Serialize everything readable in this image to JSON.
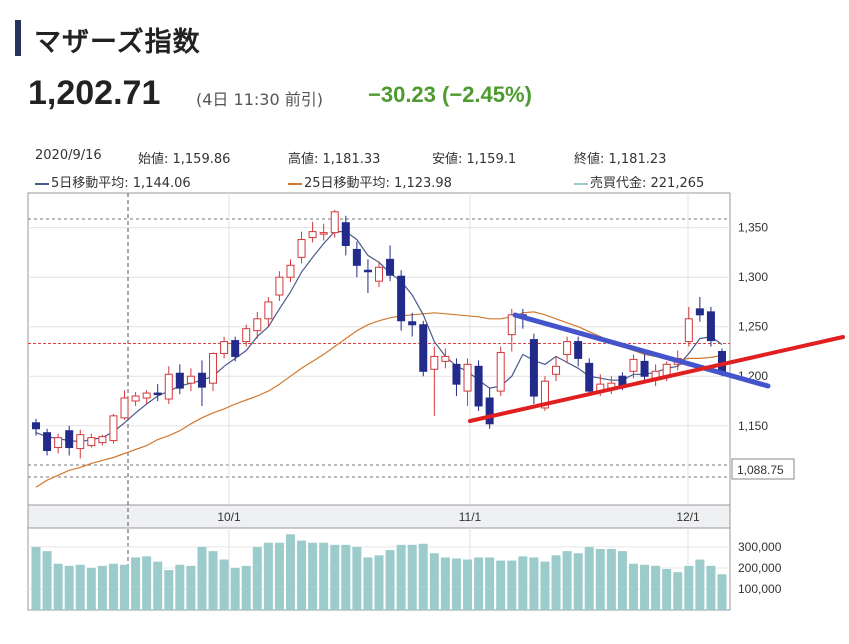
{
  "header": {
    "title": "マザーズ指数",
    "price": "1,202.71",
    "time": "(4日 11:30 前引)",
    "change": "−30.23 (−2.45%)"
  },
  "colors": {
    "up": "#d2383b",
    "down": "#222a8a",
    "ma5": "#4a5a8a",
    "ma25": "#d07a30",
    "volume": "#9ccbcc",
    "accent": "#4d9a2e"
  },
  "info": {
    "date": "2020/9/16",
    "open": "始値: 1,159.86",
    "high": "高値: 1,181.33",
    "low": "安値: 1,159.1",
    "close": "終値: 1,181.23",
    "ma5": "5日移動平均: 1,144.06",
    "ma25": "25日移動平均: 1,123.98",
    "volume": "売買代金: 221,265"
  },
  "chart_data": {
    "type": "candlestick",
    "x_ticks": [
      "10/1",
      "11/1",
      "12/1"
    ],
    "y_ticks": [
      1150,
      1200,
      1250,
      1300,
      1350
    ],
    "y_tick_labels": [
      "1,150",
      "1,200",
      "1,250",
      "1,300",
      "1,350"
    ],
    "ylim": [
      1070,
      1385
    ],
    "price_marker": "1,088.75",
    "reference_line": 1233,
    "candles": [
      [
        1153,
        1147,
        1157,
        1140
      ],
      [
        1143,
        1125,
        1147,
        1120
      ],
      [
        1128,
        1138,
        1142,
        1122
      ],
      [
        1145,
        1128,
        1150,
        1120
      ],
      [
        1127,
        1141,
        1146,
        1117
      ],
      [
        1130,
        1138,
        1142,
        1128
      ],
      [
        1133,
        1139,
        1141,
        1130
      ],
      [
        1135,
        1160,
        1162,
        1132
      ],
      [
        1158,
        1178,
        1186,
        1156
      ],
      [
        1175,
        1180,
        1184,
        1170
      ],
      [
        1178,
        1183,
        1186,
        1172
      ],
      [
        1183,
        1182,
        1192,
        1175
      ],
      [
        1177,
        1202,
        1210,
        1172
      ],
      [
        1203,
        1188,
        1212,
        1182
      ],
      [
        1193,
        1200,
        1208,
        1185
      ],
      [
        1203,
        1189,
        1216,
        1170
      ],
      [
        1193,
        1223,
        1224,
        1185
      ],
      [
        1223,
        1235,
        1240,
        1218
      ],
      [
        1236,
        1220,
        1240,
        1215
      ],
      [
        1235,
        1248,
        1252,
        1230
      ],
      [
        1246,
        1258,
        1265,
        1238
      ],
      [
        1258,
        1275,
        1280,
        1250
      ],
      [
        1282,
        1300,
        1306,
        1276
      ],
      [
        1300,
        1312,
        1318,
        1295
      ],
      [
        1320,
        1338,
        1346,
        1314
      ],
      [
        1340,
        1346,
        1356,
        1335
      ],
      [
        1344,
        1345,
        1354,
        1337
      ],
      [
        1345,
        1366,
        1368,
        1340
      ],
      [
        1355,
        1332,
        1362,
        1322
      ],
      [
        1328,
        1312,
        1336,
        1300
      ],
      [
        1307,
        1306,
        1318,
        1284
      ],
      [
        1296,
        1310,
        1316,
        1290
      ],
      [
        1318,
        1302,
        1332,
        1296
      ],
      [
        1301,
        1256,
        1307,
        1246
      ],
      [
        1255,
        1252,
        1264,
        1240
      ],
      [
        1252,
        1205,
        1256,
        1200
      ],
      [
        1207,
        1220,
        1230,
        1160
      ],
      [
        1215,
        1220,
        1228,
        1208
      ],
      [
        1212,
        1192,
        1218,
        1180
      ],
      [
        1185,
        1212,
        1218,
        1170
      ],
      [
        1210,
        1170,
        1216,
        1165
      ],
      [
        1178,
        1152,
        1188,
        1147
      ],
      [
        1185,
        1224,
        1230,
        1180
      ],
      [
        1242,
        1262,
        1268,
        1225
      ],
      [
        1262,
        1259,
        1268,
        1248
      ],
      [
        1237,
        1180,
        1243,
        1172
      ],
      [
        1168,
        1195,
        1200,
        1165
      ],
      [
        1202,
        1210,
        1220,
        1195
      ],
      [
        1222,
        1235,
        1240,
        1213
      ],
      [
        1235,
        1218,
        1240,
        1210
      ],
      [
        1213,
        1185,
        1218,
        1180
      ],
      [
        1185,
        1192,
        1202,
        1180
      ],
      [
        1188,
        1193,
        1200,
        1182
      ],
      [
        1200,
        1191,
        1204,
        1186
      ],
      [
        1205,
        1217,
        1222,
        1198
      ],
      [
        1215,
        1200,
        1222,
        1195
      ],
      [
        1198,
        1205,
        1212,
        1190
      ],
      [
        1200,
        1212,
        1215,
        1195
      ],
      [
        1212,
        1218,
        1226,
        1206
      ],
      [
        1235,
        1258,
        1270,
        1230
      ],
      [
        1268,
        1262,
        1280,
        1255
      ],
      [
        1265,
        1236,
        1270,
        1230
      ],
      [
        1225,
        1203,
        1228,
        1200
      ]
    ],
    "ma5": [
      1143,
      1139,
      1137,
      1135,
      1134,
      1136,
      1138,
      1144,
      1153,
      1163,
      1172,
      1180,
      1185,
      1190,
      1193,
      1196,
      1200,
      1210,
      1218,
      1226,
      1240,
      1250,
      1268,
      1285,
      1305,
      1320,
      1334,
      1346,
      1346,
      1338,
      1322,
      1315,
      1304,
      1296,
      1282,
      1262,
      1235,
      1220,
      1210,
      1205,
      1196,
      1188,
      1190,
      1200,
      1222,
      1216,
      1212,
      1220,
      1214,
      1208,
      1200,
      1198,
      1196,
      1196,
      1202,
      1202,
      1204,
      1208,
      1210,
      1223,
      1238,
      1240,
      1232
    ],
    "ma25": [
      1088,
      1095,
      1100,
      1105,
      1108,
      1112,
      1115,
      1118,
      1122,
      1126,
      1130,
      1136,
      1140,
      1145,
      1152,
      1158,
      1163,
      1167,
      1172,
      1176,
      1180,
      1185,
      1192,
      1200,
      1208,
      1215,
      1222,
      1230,
      1238,
      1246,
      1252,
      1256,
      1259,
      1261,
      1262,
      1263,
      1264,
      1263,
      1262,
      1261,
      1260,
      1258,
      1258,
      1260,
      1264,
      1265,
      1262,
      1258,
      1254,
      1250,
      1245,
      1240,
      1235,
      1230,
      1226,
      1222,
      1220,
      1218,
      1216,
      1218,
      1218,
      1219,
      1221
    ],
    "volume_ticks": [
      100000,
      200000,
      300000
    ],
    "volume_tick_labels": [
      "100,000",
      "200,000",
      "300,000"
    ],
    "volume": [
      300000,
      280000,
      220000,
      210000,
      215000,
      200000,
      210000,
      220000,
      215000,
      250000,
      255000,
      230000,
      190000,
      215000,
      210000,
      300000,
      280000,
      240000,
      200000,
      210000,
      300000,
      320000,
      320000,
      360000,
      330000,
      320000,
      320000,
      310000,
      310000,
      300000,
      250000,
      260000,
      285000,
      310000,
      310000,
      315000,
      270000,
      250000,
      245000,
      240000,
      250000,
      250000,
      235000,
      235000,
      255000,
      250000,
      230000,
      260000,
      280000,
      270000,
      300000,
      290000,
      290000,
      280000,
      220000,
      215000,
      210000,
      195000,
      180000,
      210000,
      240000,
      210000,
      170000
    ]
  }
}
